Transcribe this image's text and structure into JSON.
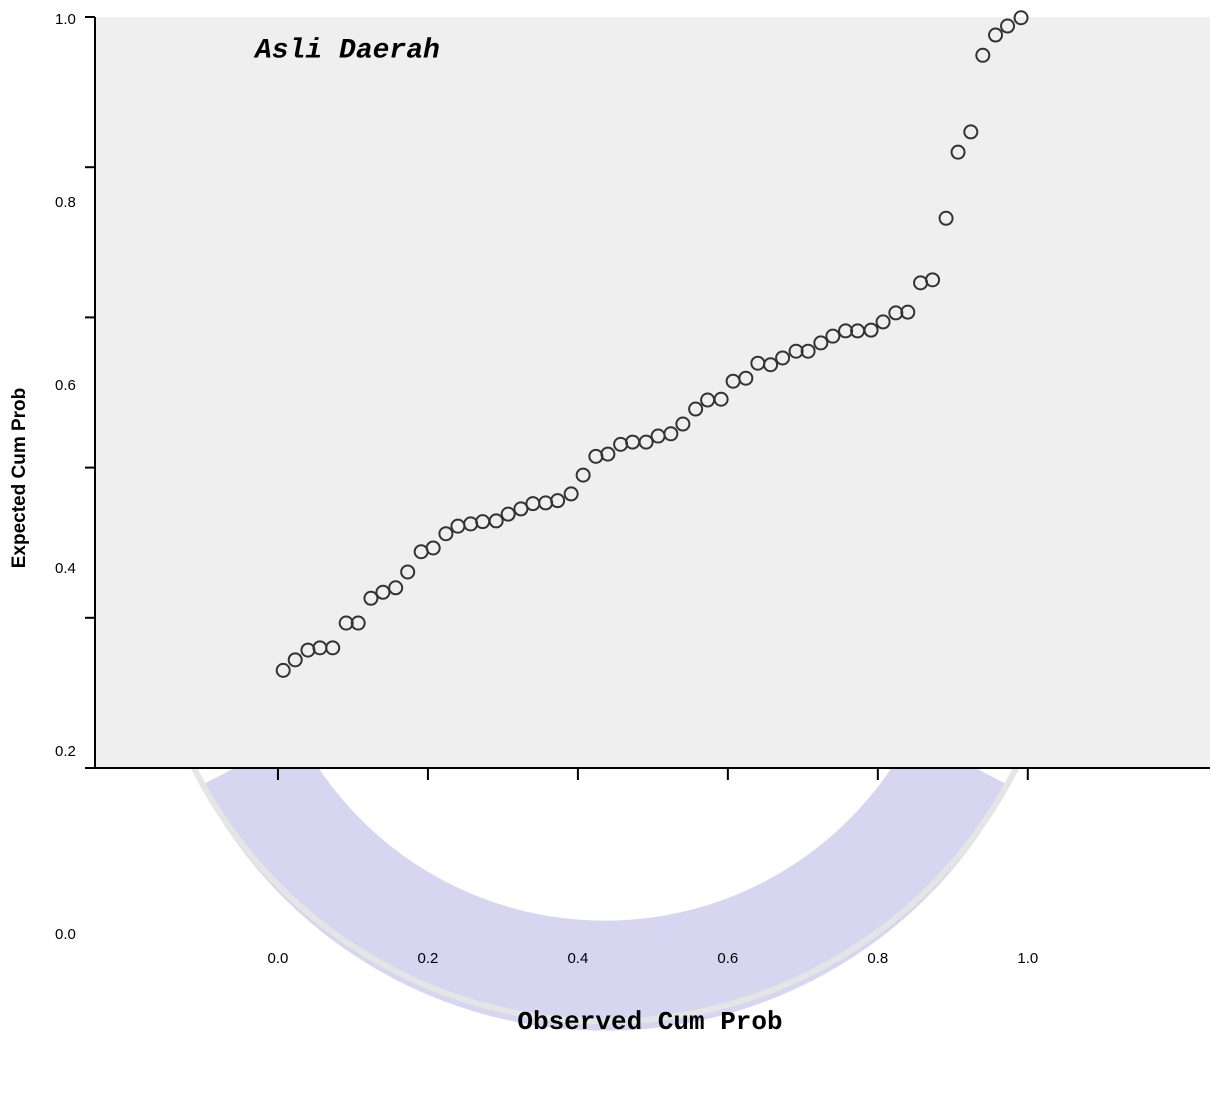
{
  "chart_data": {
    "type": "scatter",
    "title": "Asli Daerah",
    "x_label": "Observed Cum Prob",
    "y_label": "Expected Cum Prob",
    "xlim": [
      -0.244,
      1.243
    ],
    "ylim": [
      0,
      1
    ],
    "xticks": [
      {
        "value": 0,
        "label": "0.0"
      },
      {
        "value": 0.2,
        "label": "0.2"
      },
      {
        "value": 0.4,
        "label": "0.4"
      },
      {
        "value": 0.6,
        "label": "0.6"
      },
      {
        "value": 0.8,
        "label": "0.8"
      },
      {
        "value": 1,
        "label": "1.0"
      }
    ],
    "yticks": [
      {
        "value": 0,
        "label": "0.0"
      },
      {
        "value": 0.2,
        "label": "0.2"
      },
      {
        "value": 0.4,
        "label": "0.4"
      },
      {
        "value": 0.6,
        "label": "0.6"
      },
      {
        "value": 0.8,
        "label": "0.8"
      },
      {
        "value": 1,
        "label": "1.0"
      }
    ],
    "color": "#333333",
    "x": [
      0.007,
      0.023,
      0.04,
      0.056,
      0.073,
      0.091,
      0.107,
      0.124,
      0.14,
      0.157,
      0.173,
      0.191,
      0.207,
      0.224,
      0.24,
      0.257,
      0.273,
      0.291,
      0.307,
      0.324,
      0.34,
      0.357,
      0.373,
      0.391,
      0.407,
      0.424,
      0.44,
      0.457,
      0.473,
      0.491,
      0.507,
      0.524,
      0.54,
      0.557,
      0.573,
      0.591,
      0.607,
      0.624,
      0.64,
      0.657,
      0.673,
      0.691,
      0.707,
      0.724,
      0.74,
      0.757,
      0.773,
      0.791,
      0.807,
      0.824,
      0.84,
      0.857,
      0.873,
      0.891,
      0.907,
      0.924,
      0.94,
      0.957,
      0.973,
      0.991
    ],
    "values": [
      0.13,
      0.144,
      0.157,
      0.16,
      0.16,
      0.193,
      0.193,
      0.226,
      0.234,
      0.24,
      0.261,
      0.288,
      0.293,
      0.312,
      0.322,
      0.325,
      0.328,
      0.329,
      0.338,
      0.345,
      0.352,
      0.353,
      0.356,
      0.365,
      0.39,
      0.415,
      0.418,
      0.431,
      0.434,
      0.434,
      0.442,
      0.445,
      0.458,
      0.478,
      0.49,
      0.491,
      0.515,
      0.519,
      0.539,
      0.537,
      0.546,
      0.555,
      0.555,
      0.566,
      0.575,
      0.582,
      0.582,
      0.583,
      0.594,
      0.606,
      0.607,
      0.646,
      0.65,
      0.732,
      0.82,
      0.847,
      0.949,
      0.976,
      0.988,
      0.999
    ]
  }
}
